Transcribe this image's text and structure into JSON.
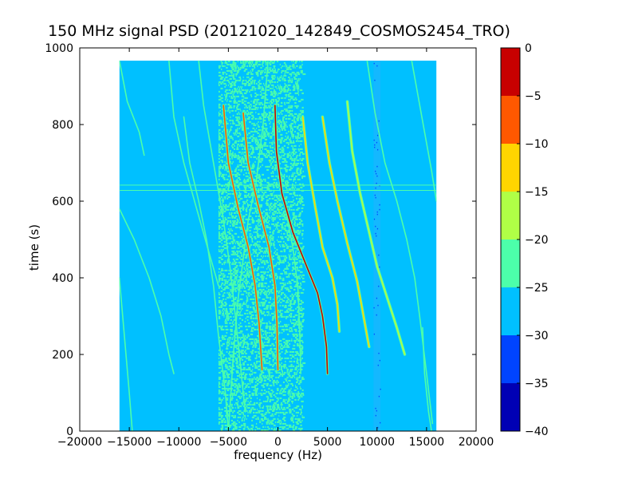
{
  "chart_data": {
    "type": "heatmap",
    "title": "150 MHz signal PSD (20121020_142849_COSMOS2454_TRO)",
    "xlabel": "frequency (Hz)",
    "ylabel": "time (s)",
    "xlim": [
      -20000,
      20000
    ],
    "ylim": [
      0,
      1000
    ],
    "data_extent": {
      "x": [
        -16000,
        16000
      ],
      "y": [
        0,
        967
      ]
    },
    "xticks": [
      -20000,
      -15000,
      -10000,
      -5000,
      0,
      5000,
      10000,
      15000,
      20000
    ],
    "xtick_labels": [
      "−20000",
      "−15000",
      "−10000",
      "−5000",
      "0",
      "5000",
      "10000",
      "15000",
      "20000"
    ],
    "yticks": [
      0,
      200,
      400,
      600,
      800,
      1000
    ],
    "ytick_labels": [
      "0",
      "200",
      "400",
      "600",
      "800",
      "1000"
    ],
    "background_level": -27.5,
    "noise_band": {
      "x_range": [
        -6000,
        2500
      ],
      "level": -22.5
    },
    "dark_column": {
      "x_center": 10000,
      "width": 700,
      "level": -32.5
    },
    "horizontal_lines": [
      {
        "y": 628,
        "level": -22.5
      },
      {
        "y": 642,
        "level": -22.5
      }
    ],
    "traces": [
      {
        "points": [
          [
            -1000,
            967
          ],
          [
            -1500,
            800
          ],
          [
            -2200,
            650
          ],
          [
            -3000,
            550
          ],
          [
            -3500,
            450
          ],
          [
            -4000,
            350
          ],
          [
            -4500,
            200
          ],
          [
            -5000,
            0
          ]
        ],
        "level": -22.5
      },
      {
        "points": [
          [
            -5500,
            850
          ],
          [
            -5000,
            700
          ],
          [
            -4000,
            580
          ],
          [
            -3000,
            480
          ],
          [
            -2300,
            380
          ],
          [
            -1900,
            280
          ],
          [
            -1600,
            160
          ]
        ],
        "level": -7.5
      },
      {
        "points": [
          [
            -3500,
            830
          ],
          [
            -3000,
            700
          ],
          [
            -2000,
            590
          ],
          [
            -900,
            480
          ],
          [
            -300,
            380
          ],
          [
            -100,
            280
          ],
          [
            0,
            160
          ]
        ],
        "level": -7.5
      },
      {
        "points": [
          [
            -200,
            830
          ],
          [
            0,
            720
          ],
          [
            600,
            600
          ],
          [
            1500,
            480
          ],
          [
            2000,
            380
          ],
          [
            2200,
            260
          ],
          [
            2300,
            150
          ]
        ],
        "level": -22.5
      },
      {
        "points": [
          [
            -300,
            850
          ],
          [
            -150,
            730
          ],
          [
            400,
            620
          ],
          [
            1500,
            520
          ],
          [
            2900,
            430
          ],
          [
            4000,
            360
          ],
          [
            4500,
            300
          ],
          [
            4900,
            220
          ],
          [
            5000,
            150
          ]
        ],
        "level": -2.5
      },
      {
        "points": [
          [
            2500,
            820
          ],
          [
            3000,
            700
          ],
          [
            3800,
            580
          ],
          [
            4500,
            480
          ],
          [
            5500,
            400
          ],
          [
            6000,
            330
          ],
          [
            6200,
            260
          ]
        ],
        "level": -12.5
      },
      {
        "points": [
          [
            4500,
            820
          ],
          [
            5200,
            700
          ],
          [
            6000,
            600
          ],
          [
            7000,
            490
          ],
          [
            8000,
            390
          ],
          [
            8500,
            320
          ],
          [
            9200,
            220
          ]
        ],
        "level": -12.5
      },
      {
        "points": [
          [
            7000,
            860
          ],
          [
            7500,
            730
          ],
          [
            8300,
            620
          ],
          [
            9200,
            520
          ],
          [
            10000,
            430
          ],
          [
            11000,
            350
          ],
          [
            12000,
            270
          ],
          [
            12800,
            200
          ]
        ],
        "level": -17.5
      },
      {
        "points": [
          [
            9000,
            967
          ],
          [
            9800,
            830
          ],
          [
            10800,
            700
          ],
          [
            12000,
            600
          ],
          [
            13000,
            500
          ],
          [
            13800,
            400
          ],
          [
            14300,
            300
          ],
          [
            15000,
            150
          ],
          [
            15600,
            20
          ]
        ],
        "level": -22.5
      },
      {
        "points": [
          [
            13500,
            967
          ],
          [
            14800,
            780
          ],
          [
            15500,
            680
          ],
          [
            16000,
            600
          ]
        ],
        "level": -22.5
      },
      {
        "points": [
          [
            14600,
            270
          ],
          [
            14800,
            150
          ],
          [
            15200,
            50
          ],
          [
            15500,
            0
          ]
        ],
        "level": -22.5
      },
      {
        "points": [
          [
            -8000,
            967
          ],
          [
            -7500,
            850
          ],
          [
            -6500,
            700
          ],
          [
            -5500,
            550
          ],
          [
            -4800,
            420
          ],
          [
            -4300,
            300
          ],
          [
            -3700,
            150
          ],
          [
            -3300,
            50
          ]
        ],
        "level": -22.5
      },
      {
        "points": [
          [
            -9500,
            820
          ],
          [
            -8900,
            700
          ],
          [
            -8000,
            600
          ],
          [
            -7200,
            500
          ],
          [
            -6500,
            380
          ],
          [
            -6000,
            250
          ],
          [
            -5300,
            100
          ],
          [
            -5000,
            0
          ]
        ],
        "level": -22.5
      },
      {
        "points": [
          [
            -16000,
            580
          ],
          [
            -14500,
            500
          ],
          [
            -13000,
            400
          ],
          [
            -11800,
            300
          ],
          [
            -11000,
            200
          ],
          [
            -10500,
            150
          ]
        ],
        "level": -22.5
      },
      {
        "points": [
          [
            -16000,
            967
          ],
          [
            -15200,
            860
          ],
          [
            -14000,
            780
          ],
          [
            -13500,
            720
          ]
        ],
        "level": -22.5
      },
      {
        "points": [
          [
            -16000,
            400
          ],
          [
            -15500,
            250
          ],
          [
            -15000,
            100
          ],
          [
            -14700,
            0
          ]
        ],
        "level": -22.5
      },
      {
        "points": [
          [
            -11000,
            967
          ],
          [
            -10500,
            820
          ],
          [
            -9500,
            700
          ],
          [
            -8200,
            580
          ],
          [
            -7000,
            470
          ],
          [
            -6000,
            380
          ]
        ],
        "level": -22.5
      }
    ],
    "colorbar": {
      "levels": [
        -40,
        -35,
        -30,
        -25,
        -20,
        -15,
        -10,
        -5,
        0
      ],
      "tick_labels": [
        "0",
        "−5",
        "−10",
        "−15",
        "−20",
        "−25",
        "−30",
        "−35",
        "−40"
      ],
      "colors": [
        "#0000b4",
        "#0044ff",
        "#00c0ff",
        "#4cffaa",
        "#b0ff46",
        "#ffd500",
        "#ff5800",
        "#c80000"
      ]
    }
  }
}
